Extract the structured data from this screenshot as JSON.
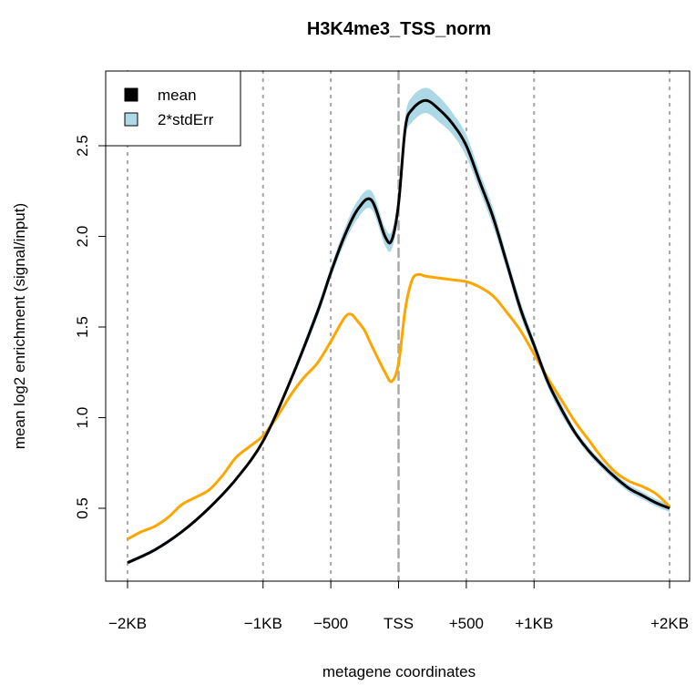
{
  "chart_data": {
    "type": "line",
    "title": "H3K4me3_TSS_norm",
    "xlabel": "metagene coordinates",
    "ylabel": "mean log2 enrichment (signal/input)",
    "xlim": [
      -2000,
      2000
    ],
    "ylim": [
      0.15,
      2.85
    ],
    "x_ticks": [
      {
        "value": -2000,
        "label": "−2KB"
      },
      {
        "value": -1000,
        "label": "−1KB"
      },
      {
        "value": -500,
        "label": "−500"
      },
      {
        "value": 0,
        "label": "TSS"
      },
      {
        "value": 500,
        "label": "+500"
      },
      {
        "value": 1000,
        "label": "+1KB"
      },
      {
        "value": 2000,
        "label": "+2KB"
      }
    ],
    "y_ticks": [
      {
        "value": 0.5,
        "label": "0.5"
      },
      {
        "value": 1.0,
        "label": "1.0"
      },
      {
        "value": 1.5,
        "label": "1.5"
      },
      {
        "value": 2.0,
        "label": "2.0"
      },
      {
        "value": 2.5,
        "label": "2.5"
      }
    ],
    "vlines": [
      -2000,
      -1000,
      -500,
      0,
      500,
      1000,
      2000
    ],
    "tss_line": 0,
    "legend": {
      "position": "top-left",
      "entries": [
        {
          "label": "mean",
          "color": "#000000"
        },
        {
          "label": "2*stdErr",
          "color": "#add8e6"
        }
      ]
    },
    "colors": {
      "mean": "#000000",
      "band": "#add8e6",
      "second": "#ffa500",
      "tss": "#a9a9a9",
      "grid": "#a9a9a9"
    },
    "series": [
      {
        "name": "mean",
        "x": [
          -2000,
          -1800,
          -1600,
          -1400,
          -1200,
          -1000,
          -800,
          -600,
          -500,
          -400,
          -300,
          -200,
          -100,
          -50,
          0,
          50,
          100,
          200,
          300,
          400,
          500,
          600,
          700,
          800,
          900,
          1000,
          1100,
          1200,
          1300,
          1400,
          1500,
          1600,
          1700,
          1800,
          1900,
          2000
        ],
        "y": [
          0.2,
          0.27,
          0.37,
          0.5,
          0.66,
          0.87,
          1.2,
          1.58,
          1.8,
          2.0,
          2.15,
          2.2,
          2.0,
          1.98,
          2.18,
          2.6,
          2.7,
          2.75,
          2.7,
          2.62,
          2.5,
          2.3,
          2.1,
          1.85,
          1.6,
          1.4,
          1.2,
          1.05,
          0.92,
          0.82,
          0.74,
          0.67,
          0.61,
          0.57,
          0.53,
          0.5
        ],
        "err": [
          0.01,
          0.01,
          0.01,
          0.01,
          0.01,
          0.01,
          0.02,
          0.03,
          0.03,
          0.04,
          0.05,
          0.05,
          0.05,
          0.05,
          0.05,
          0.06,
          0.07,
          0.07,
          0.07,
          0.06,
          0.06,
          0.05,
          0.05,
          0.04,
          0.04,
          0.03,
          0.03,
          0.03,
          0.02,
          0.02,
          0.02,
          0.02,
          0.02,
          0.02,
          0.02,
          0.02
        ]
      },
      {
        "x": [
          -2000,
          -1900,
          -1800,
          -1700,
          -1600,
          -1500,
          -1400,
          -1300,
          -1200,
          -1100,
          -1000,
          -900,
          -800,
          -700,
          -600,
          -500,
          -400,
          -350,
          -300,
          -250,
          -200,
          -100,
          -50,
          0,
          50,
          100,
          150,
          200,
          300,
          400,
          500,
          600,
          700,
          800,
          900,
          1000,
          1100,
          1200,
          1300,
          1400,
          1500,
          1600,
          1700,
          1800,
          1900,
          2000
        ],
        "y": [
          0.33,
          0.37,
          0.4,
          0.45,
          0.52,
          0.56,
          0.6,
          0.68,
          0.78,
          0.84,
          0.9,
          1.0,
          1.12,
          1.22,
          1.3,
          1.42,
          1.55,
          1.57,
          1.53,
          1.48,
          1.4,
          1.25,
          1.2,
          1.3,
          1.6,
          1.76,
          1.79,
          1.78,
          1.77,
          1.76,
          1.75,
          1.72,
          1.67,
          1.58,
          1.48,
          1.35,
          1.22,
          1.1,
          0.98,
          0.88,
          0.78,
          0.7,
          0.65,
          0.62,
          0.58,
          0.51
        ]
      }
    ]
  }
}
